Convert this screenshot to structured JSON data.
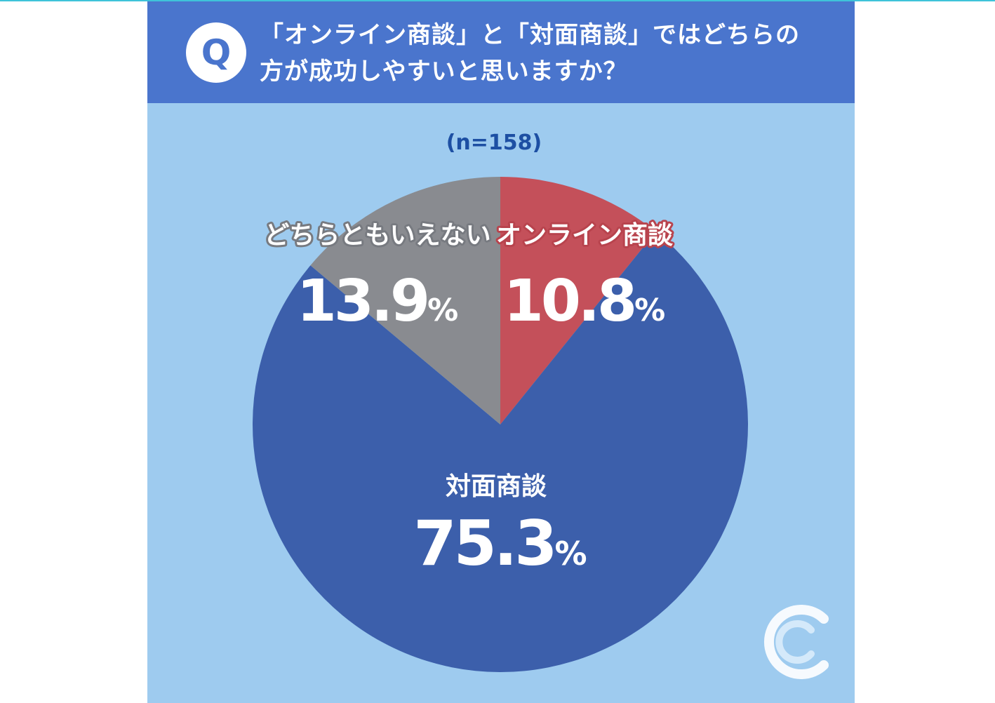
{
  "header": {
    "badge": "Q",
    "question_line1": "「オンライン商談」と「対面商談」ではどちらの",
    "question_line2": "方が成功しやすいと思いますか？"
  },
  "chart_data": {
    "type": "pie",
    "sample_size_label": "(n=158)",
    "percent_sign": "%",
    "slices": [
      {
        "label": "オンライン商談",
        "value": 10.8,
        "display": "10.8",
        "color": "#c4505a"
      },
      {
        "label": "対面商談",
        "value": 75.3,
        "display": "75.3",
        "color": "#3c5fab"
      },
      {
        "label": "どちらともいえない",
        "value": 13.9,
        "display": "13.9",
        "color": "#898b90"
      }
    ]
  },
  "colors": {
    "background": "#9ecbef",
    "header": "#4a75cd",
    "sample_label": "#1d4fa3"
  }
}
